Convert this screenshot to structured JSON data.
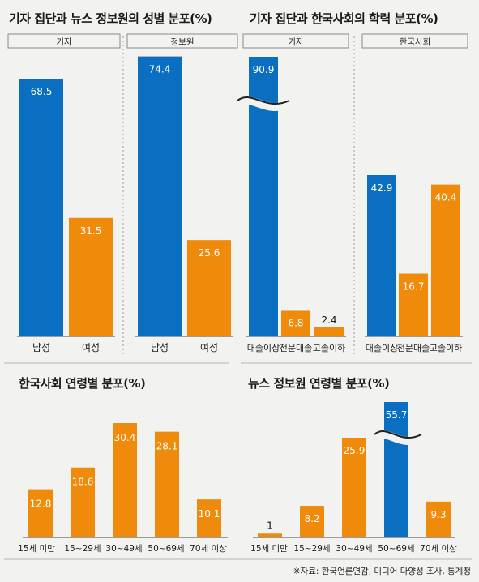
{
  "colors": {
    "blue": "#0b6fc1",
    "orange": "#f08a0a",
    "text": "#1a1a1a"
  },
  "titles": {
    "gender": "기자 집단과 뉴스 정보원의 성별 분포(%)",
    "education": "기자 집단과 한국사회의 학력 분포(%)",
    "age_korea": "한국사회 연령별 분포(%)",
    "age_news": "뉴스 정보원 연령별 분포(%)"
  },
  "source": "※자료: 한국언론연감, 미디어 다양성 조사, 통계청",
  "chart_data": [
    {
      "type": "bar",
      "title": "기자 집단과 뉴스 정보원의 성별 분포(%)",
      "panels": [
        {
          "label": "기자",
          "categories": [
            "남성",
            "여성"
          ],
          "values": [
            68.5,
            31.5
          ],
          "colors": [
            "blue",
            "orange"
          ]
        },
        {
          "label": "정보원",
          "categories": [
            "남성",
            "여성"
          ],
          "values": [
            74.4,
            25.6
          ],
          "colors": [
            "blue",
            "orange"
          ]
        }
      ],
      "ylim": [
        0,
        80
      ]
    },
    {
      "type": "bar",
      "title": "기자 집단과 한국사회의 학력 분포(%)",
      "panels": [
        {
          "label": "기자",
          "categories": [
            "대졸이상",
            "전문대졸",
            "고졸이하"
          ],
          "values": [
            90.9,
            6.8,
            2.4
          ],
          "colors": [
            "blue",
            "orange",
            "orange"
          ],
          "axis_break": true
        },
        {
          "label": "한국사회",
          "categories": [
            "대졸이상",
            "전문대졸",
            "고졸이하"
          ],
          "values": [
            42.9,
            16.7,
            40.4
          ],
          "colors": [
            "blue",
            "orange",
            "orange"
          ]
        }
      ],
      "ylim": [
        0,
        50
      ]
    },
    {
      "type": "bar",
      "title": "한국사회 연령별 분포(%)",
      "categories": [
        "15세 미만",
        "15~29세",
        "30~49세",
        "50~69세",
        "70세 이상"
      ],
      "values": [
        12.8,
        18.6,
        30.4,
        28.1,
        10.1
      ],
      "colors": [
        "orange",
        "orange",
        "orange",
        "orange",
        "orange"
      ],
      "ylim": [
        0,
        33
      ]
    },
    {
      "type": "bar",
      "title": "뉴스 정보원 연령별 분포(%)",
      "categories": [
        "15세 미만",
        "15~29세",
        "30~49세",
        "50~69세",
        "70세 이상"
      ],
      "values": [
        1,
        8.2,
        25.9,
        55.7,
        9.3
      ],
      "colors": [
        "orange",
        "orange",
        "orange",
        "blue",
        "orange"
      ],
      "axis_break": true,
      "ylim": [
        0,
        33
      ]
    }
  ]
}
